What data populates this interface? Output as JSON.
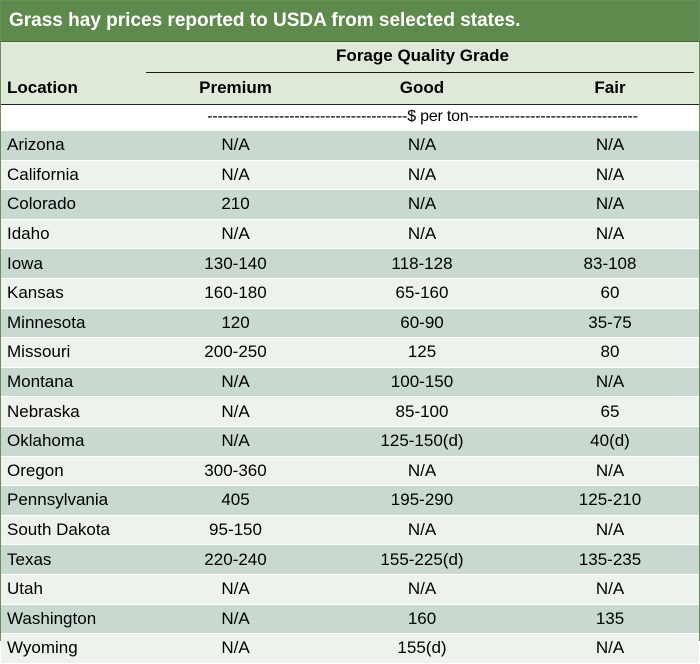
{
  "title": "Grass hay prices reported to USDA from selected states.",
  "header": {
    "grade_group": "Forage Quality Grade",
    "location": "Location",
    "premium": "Premium",
    "good": "Good",
    "fair": "Fair"
  },
  "unit": "---------------------------------------$ per ton---------------------------------",
  "rows": [
    {
      "location": "Arizona",
      "premium": "N/A",
      "good": "N/A",
      "fair": "N/A"
    },
    {
      "location": "California",
      "premium": "N/A",
      "good": "N/A",
      "fair": "N/A"
    },
    {
      "location": "Colorado",
      "premium": "210",
      "good": "N/A",
      "fair": "N/A"
    },
    {
      "location": "Idaho",
      "premium": "N/A",
      "good": "N/A",
      "fair": "N/A"
    },
    {
      "location": "Iowa",
      "premium": "130-140",
      "good": "118-128",
      "fair": "83-108"
    },
    {
      "location": "Kansas",
      "premium": "160-180",
      "good": "65-160",
      "fair": "60"
    },
    {
      "location": "Minnesota",
      "premium": "120",
      "good": "60-90",
      "fair": "35-75"
    },
    {
      "location": "Missouri",
      "premium": "200-250",
      "good": "125",
      "fair": "80"
    },
    {
      "location": "Montana",
      "premium": "N/A",
      "good": "100-150",
      "fair": "N/A"
    },
    {
      "location": "Nebraska",
      "premium": "N/A",
      "good": "85-100",
      "fair": "65"
    },
    {
      "location": "Oklahoma",
      "premium": "N/A",
      "good": "125-150(d)",
      "fair": "40(d)"
    },
    {
      "location": "Oregon",
      "premium": "300-360",
      "good": "N/A",
      "fair": "N/A"
    },
    {
      "location": "Pennsylvania",
      "premium": "405",
      "good": "195-290",
      "fair": "125-210"
    },
    {
      "location": "South Dakota",
      "premium": "95-150",
      "good": "N/A",
      "fair": "N/A"
    },
    {
      "location": "Texas",
      "premium": "220-240",
      "good": "155-225(d)",
      "fair": "135-235"
    },
    {
      "location": "Utah",
      "premium": "N/A",
      "good": "N/A",
      "fair": "N/A"
    },
    {
      "location": "Washington",
      "premium": "N/A",
      "good": "160",
      "fair": "135"
    },
    {
      "location": "Wyoming",
      "premium": "N/A",
      "good": "155(d)",
      "fair": "N/A"
    }
  ]
}
